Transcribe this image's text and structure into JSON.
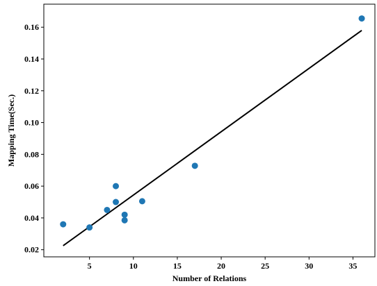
{
  "chart_data": {
    "type": "scatter",
    "xlabel": "Number of Relations",
    "ylabel": "Mapping Time(Sec.)",
    "xlim": [
      -0.2,
      37.5
    ],
    "ylim": [
      0.0155,
      0.1745
    ],
    "x_ticks": [
      5,
      10,
      15,
      20,
      25,
      30,
      35
    ],
    "x_tick_labels": [
      "5",
      "10",
      "15",
      "20",
      "25",
      "30",
      "35"
    ],
    "y_ticks": [
      0.02,
      0.04,
      0.06,
      0.08,
      0.1,
      0.12,
      0.14,
      0.16
    ],
    "y_tick_labels": [
      "0.02",
      "0.04",
      "0.06",
      "0.08",
      "0.10",
      "0.12",
      "0.14",
      "0.16"
    ],
    "grid": false,
    "point_color": "#1f77b4",
    "line_color": "#000000",
    "series": [
      {
        "type": "scatter",
        "x": [
          2,
          5,
          7,
          8,
          8,
          9,
          9,
          11,
          17,
          36
        ],
        "y": [
          0.036,
          0.034,
          0.045,
          0.06,
          0.05,
          0.042,
          0.0385,
          0.0505,
          0.0728,
          0.1655
        ]
      },
      {
        "type": "line",
        "x": [
          2,
          36
        ],
        "y": [
          0.0225,
          0.158
        ]
      }
    ]
  }
}
